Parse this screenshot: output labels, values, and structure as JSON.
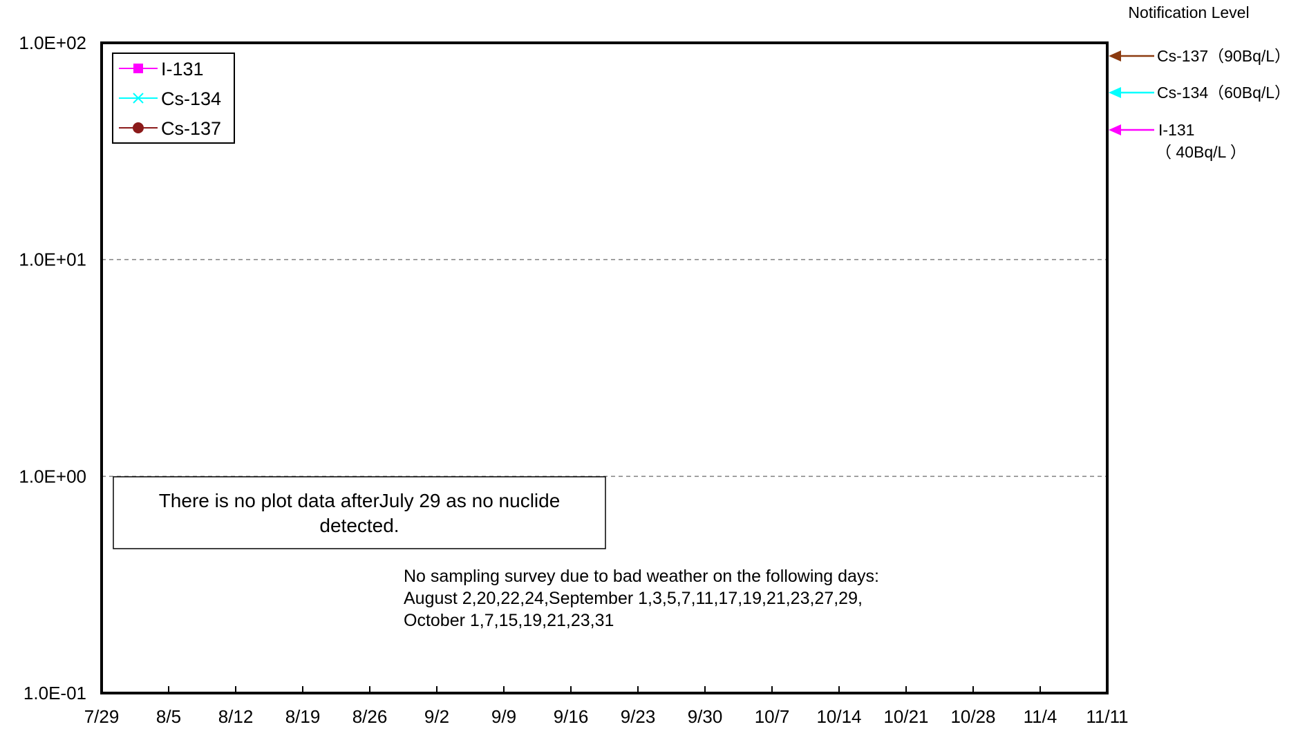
{
  "chart_data": {
    "type": "line",
    "title": "",
    "xlabel": "",
    "ylabel": "",
    "yscale": "log",
    "ylim": [
      0.1,
      100
    ],
    "y_ticks": [
      {
        "value": 100,
        "label": "1.0E+02"
      },
      {
        "value": 10,
        "label": "1.0E+01"
      },
      {
        "value": 1,
        "label": "1.0E+00"
      },
      {
        "value": 0.1,
        "label": "1.0E-01"
      }
    ],
    "x_categories": [
      "7/29",
      "8/5",
      "8/12",
      "8/19",
      "8/26",
      "9/2",
      "9/9",
      "9/16",
      "9/23",
      "9/30",
      "10/7",
      "10/14",
      "10/21",
      "10/28",
      "11/4",
      "11/11"
    ],
    "grid": true,
    "legend_position": "top-left",
    "series": [
      {
        "name": "I-131",
        "color": "#ff00ff",
        "marker": "square",
        "values": []
      },
      {
        "name": "Cs-134",
        "color": "#00ffff",
        "marker": "x",
        "values": []
      },
      {
        "name": "Cs-137",
        "color": "#8b1a1a",
        "marker": "circle",
        "values": []
      }
    ],
    "notification_levels": {
      "heading": "Notification Level",
      "items": [
        {
          "nuclide": "Cs-137",
          "label": "Cs-137（90Bq/L）",
          "value": 90,
          "color": "#8b3a0f"
        },
        {
          "nuclide": "Cs-134",
          "label": "Cs-134（60Bq/L）",
          "value": 60,
          "color": "#00ffff"
        },
        {
          "nuclide": "I-131",
          "label_line1": "I-131",
          "label_line2": "（ 40Bq/L ）",
          "value": 40,
          "color": "#ff00ff"
        }
      ]
    },
    "annotations": {
      "no_data_box": [
        "There is no plot data afterJuly 29 as no nuclide",
        "detected."
      ],
      "no_sampling": [
        "No sampling survey due to bad weather on the following days:",
        "August 2,20,22,24,September 1,3,5,7,11,17,19,21,23,27,29,",
        "October 1,7,15,19,21,23,31"
      ]
    }
  }
}
